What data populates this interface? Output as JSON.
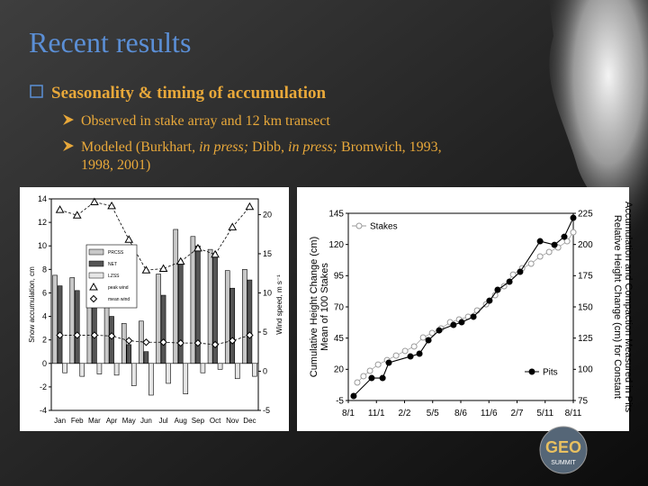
{
  "slide": {
    "title": "Recent results",
    "bullet": "Seasonality & timing of accumulation",
    "items": [
      {
        "parts": [
          "Observed in stake array and 12 km transect"
        ]
      },
      {
        "parts": [
          "Modeled (Burkhart, ",
          "in press;",
          " Dibb, ",
          "in press;",
          " Bromwich, 1993,",
          "1998, 2001)"
        ]
      }
    ],
    "logo": [
      "GEO",
      "SUMMIT"
    ]
  },
  "chart_data": [
    {
      "type": "bar",
      "y_label": "Snow accumulation, cm",
      "y2_label": "Wind speed, m s⁻¹",
      "categories": [
        "Jan",
        "Feb",
        "Mar",
        "Apr",
        "May",
        "Jun",
        "Jul",
        "Aug",
        "Sep",
        "Oct",
        "Nov",
        "Dec"
      ],
      "ylim": [
        -4,
        14
      ],
      "yticks": [
        -4,
        -2,
        0,
        2,
        4,
        6,
        8,
        10,
        12,
        14
      ],
      "y2lim": [
        -5,
        22
      ],
      "y2ticks": [
        -5,
        0,
        5,
        10,
        15,
        20
      ],
      "legend": "upper left",
      "series": [
        {
          "name": "PRCSS",
          "color": "#c8c8c8",
          "values": [
            7.5,
            7.3,
            5.8,
            5.1,
            3.4,
            3.6,
            7.6,
            11.4,
            10.8,
            9.7,
            7.9,
            8.0
          ]
        },
        {
          "name": "NET",
          "color": "#555555",
          "values": [
            6.6,
            6.2,
            4.8,
            4.0,
            1.6,
            1.0,
            5.8,
            8.6,
            10.0,
            9.2,
            6.4,
            7.1
          ]
        },
        {
          "name": "LZSS",
          "color": "#e6e6e6",
          "values": [
            -0.8,
            -1.1,
            -0.9,
            -1.0,
            -1.9,
            -2.7,
            -1.7,
            -2.6,
            -0.8,
            -0.5,
            -1.3,
            -1.1
          ]
        },
        {
          "name": "peak wind",
          "color": "#000000",
          "axis": "y2",
          "marker": "triangle",
          "values": [
            20.6,
            19.9,
            21.6,
            21.1,
            16.8,
            12.9,
            13.1,
            14.0,
            15.7,
            14.9,
            18.4,
            21.0
          ]
        },
        {
          "name": "mean wind",
          "color": "#000000",
          "axis": "y2",
          "marker": "diamond",
          "values": [
            4.6,
            4.6,
            4.6,
            4.5,
            3.9,
            3.7,
            3.7,
            3.6,
            3.6,
            3.4,
            3.9,
            4.6
          ]
        }
      ]
    },
    {
      "type": "line",
      "y_label": [
        "Cumulative Height Change (cm)",
        "Mean of 100 Stakes"
      ],
      "y2_label": [
        "Relative Height Change (cm) for Constant",
        "Accumulation and Compaction Measured in Pits"
      ],
      "xlim": [
        0,
        8
      ],
      "xticks": [
        {
          "value": 0,
          "label": "8/1"
        },
        {
          "value": 1,
          "label": "11/1"
        },
        {
          "value": 2,
          "label": "2/2"
        },
        {
          "value": 3,
          "label": "5/5"
        },
        {
          "value": 4,
          "label": "8/6"
        },
        {
          "value": 5,
          "label": "11/6"
        },
        {
          "value": 6,
          "label": "2/7"
        },
        {
          "value": 7,
          "label": "5/11"
        },
        {
          "value": 8,
          "label": "8/11"
        }
      ],
      "ylim": [
        -5,
        145
      ],
      "yticks": [
        -5,
        20,
        45,
        70,
        95,
        120,
        145
      ],
      "y2lim": [
        75,
        225
      ],
      "y2ticks": [
        75,
        100,
        125,
        150,
        175,
        200,
        225
      ],
      "series": [
        {
          "name": "Stakes",
          "color": "#999999",
          "marker": "open",
          "x": [
            0.32,
            0.54,
            0.77,
            1.06,
            1.38,
            1.7,
            2.02,
            2.34,
            2.66,
            2.98,
            3.3,
            3.62,
            3.94,
            4.26,
            4.58,
            4.9,
            5.22,
            5.54,
            5.86,
            6.18,
            6.5,
            6.82,
            7.14,
            7.46,
            7.78,
            8.0
          ],
          "values": [
            9.4,
            14.5,
            18.8,
            23.8,
            27.4,
            31.0,
            34.7,
            38.3,
            45.5,
            49.1,
            52.7,
            57.7,
            59.9,
            62.1,
            67.1,
            72.1,
            79.4,
            86.6,
            95.9,
            101.0,
            104.6,
            110.4,
            114.0,
            117.6,
            122.6,
            129.8
          ]
        },
        {
          "name": "Pits",
          "color": "#000000",
          "marker": "filled",
          "x": [
            0.19,
            0.83,
            1.22,
            1.44,
            2.21,
            2.53,
            2.85,
            3.23,
            3.74,
            4.03,
            4.45,
            5.02,
            5.31,
            5.73,
            6.11,
            6.82,
            7.33,
            7.68,
            8.0
          ],
          "values": [
            -1.4,
            13.0,
            13.0,
            25.3,
            30.3,
            32.5,
            43.3,
            51.2,
            55.6,
            57.7,
            62.1,
            75.0,
            83.7,
            90.2,
            98.1,
            122.6,
            119.7,
            126.2,
            141.4
          ]
        }
      ]
    }
  ]
}
